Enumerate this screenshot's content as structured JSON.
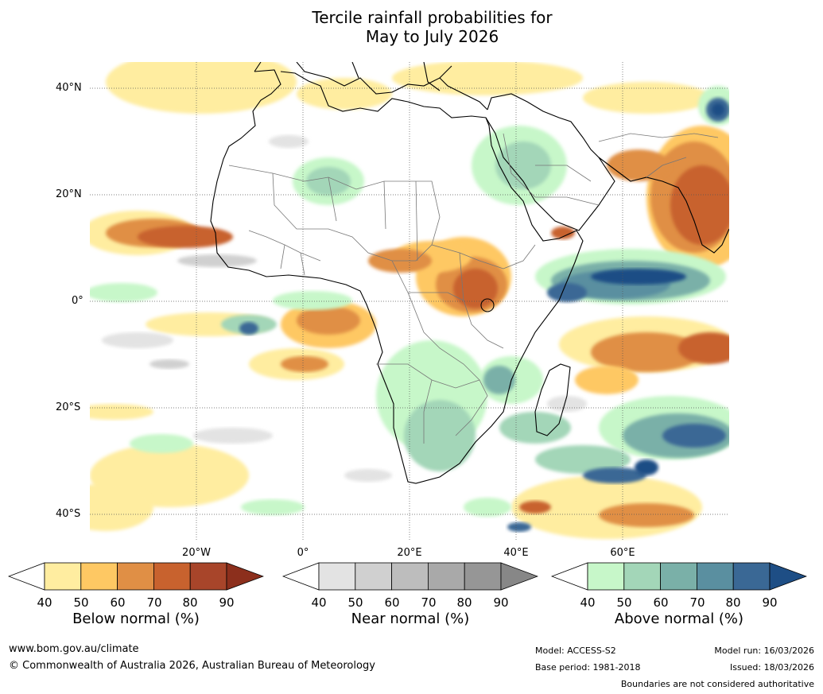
{
  "title": {
    "line1": "Tercile rainfall probabilities for",
    "line2": "May to July 2026"
  },
  "map": {
    "lat_labels": [
      "40°N",
      "20°N",
      "0°",
      "20°S",
      "40°S"
    ],
    "lon_labels": [
      "20°W",
      "0°",
      "20°E",
      "40°E",
      "60°E"
    ],
    "colors": {
      "below": [
        "#ffeda0",
        "#fec863",
        "#e08f45",
        "#c8622e",
        "#a8452a",
        "#8c2f1c"
      ],
      "near": [
        "#e3e3e3",
        "#d0d0d0",
        "#bdbdbd",
        "#a9a9a9",
        "#969696",
        "#878787"
      ],
      "above": [
        "#c7f7c9",
        "#a3d6b8",
        "#7ab0a8",
        "#5a8fa0",
        "#3a6895",
        "#1e4e85"
      ],
      "land_outline": "#000000",
      "border": "#777777"
    }
  },
  "colorbars": [
    {
      "name": "below",
      "ticks": [
        "40",
        "50",
        "60",
        "70",
        "80",
        "90"
      ],
      "title": "Below normal (%)"
    },
    {
      "name": "near",
      "ticks": [
        "40",
        "50",
        "60",
        "70",
        "80",
        "90"
      ],
      "title": "Near normal (%)"
    },
    {
      "name": "above",
      "ticks": [
        "40",
        "50",
        "60",
        "70",
        "80",
        "90"
      ],
      "title": "Above normal (%)"
    }
  ],
  "footer": {
    "website": "www.bom.gov.au/climate",
    "copyright": "© Commonwealth of Australia 2026, Australian Bureau of Meteorology",
    "model": "Model: ACCESS-S2",
    "base_period": "Base period: 1981-2018",
    "model_run": "Model run: 16/03/2026",
    "issued": "Issued: 18/03/2026",
    "disclaimer": "Boundaries are not considered authoritative"
  }
}
